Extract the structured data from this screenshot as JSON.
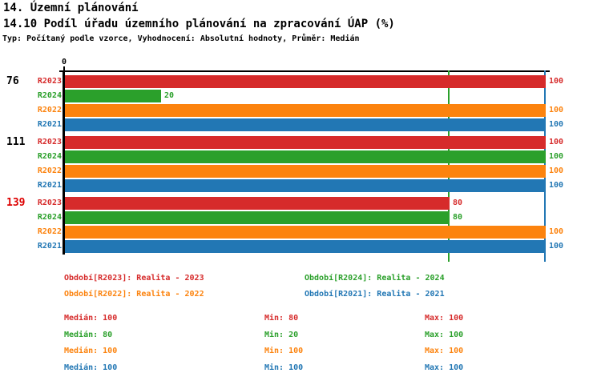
{
  "header": {
    "title": "14. Územní plánování",
    "subtitle": "14.10 Podíl úřadu územního plánování na zpracování ÚAP (%)",
    "meta": "Typ: Počítaný podle vzorce, Vyhodnocení: Absolutní hodnoty, Průměr: Medián"
  },
  "colors": {
    "R2023": "#d62b2b",
    "R2024": "#2ba02b",
    "R2022": "#fc830e",
    "R2021": "#2277b4",
    "axis": "#000000",
    "highlight_group_label": "#dd0000"
  },
  "chart_data": {
    "type": "bar",
    "orientation": "horizontal",
    "zero_tick": "0",
    "xlim": [
      0,
      100
    ],
    "grid": false,
    "series_order": [
      "R2023",
      "R2024",
      "R2022",
      "R2021"
    ],
    "groups": [
      {
        "label": "76",
        "highlight": false,
        "values": [
          100,
          20,
          100,
          100
        ]
      },
      {
        "label": "111",
        "highlight": false,
        "values": [
          100,
          100,
          100,
          100
        ]
      },
      {
        "label": "139",
        "highlight": true,
        "values": [
          80,
          80,
          100,
          100
        ]
      }
    ],
    "reference_lines": [
      {
        "series": "R2024",
        "value": 80
      },
      {
        "series": "R2021",
        "value": 100
      }
    ],
    "stats": {
      "R2023": {
        "median": 100,
        "min": 80,
        "max": 100
      },
      "R2024": {
        "median": 80,
        "min": 20,
        "max": 100
      },
      "R2022": {
        "median": 100,
        "min": 100,
        "max": 100
      },
      "R2021": {
        "median": 100,
        "min": 100,
        "max": 100
      }
    }
  },
  "legend": {
    "items": [
      {
        "series": "R2023",
        "text": "Období[R2023]: Realita - 2023"
      },
      {
        "series": "R2024",
        "text": "Období[R2024]: Realita - 2024"
      },
      {
        "series": "R2022",
        "text": "Období[R2022]: Realita - 2022"
      },
      {
        "series": "R2021",
        "text": "Období[R2021]: Realita - 2021"
      }
    ]
  },
  "stats_table": {
    "rows": [
      {
        "series": "R2023",
        "median": "Medián: 100",
        "min": "Min: 80",
        "max": "Max: 100"
      },
      {
        "series": "R2024",
        "median": "Medián: 80",
        "min": "Min: 20",
        "max": "Max: 100"
      },
      {
        "series": "R2022",
        "median": "Medián: 100",
        "min": "Min: 100",
        "max": "Max: 100"
      },
      {
        "series": "R2021",
        "median": "Medián: 100",
        "min": "Min: 100",
        "max": "Max: 100"
      }
    ]
  }
}
